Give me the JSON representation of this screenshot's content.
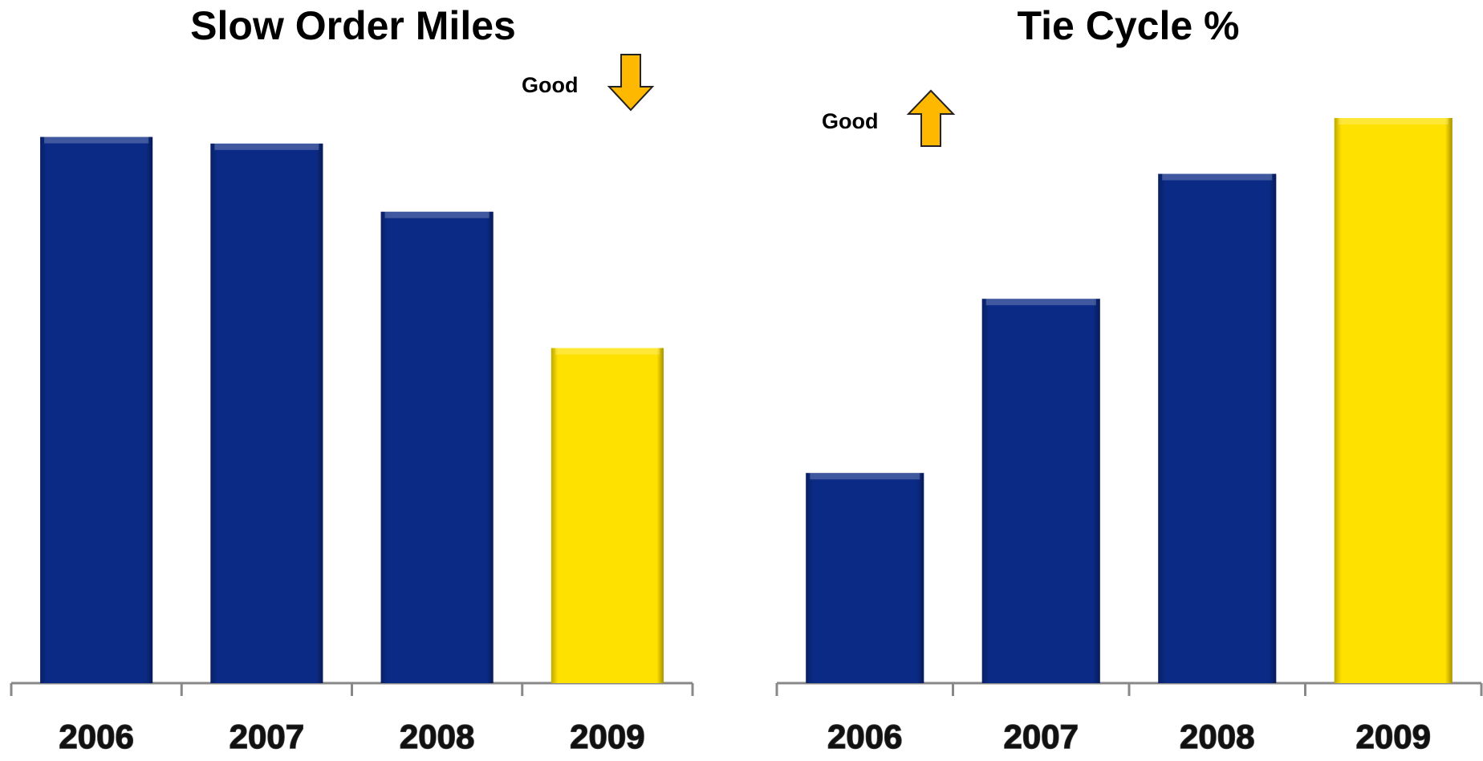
{
  "chart_data": [
    {
      "type": "bar",
      "title": "Slow Order Miles",
      "annotation": "Good",
      "categories": [
        "2006",
        "2007",
        "2008",
        "2009"
      ],
      "values": [
        577,
        570,
        498,
        354
      ],
      "colors": [
        "#0b2a85",
        "#0b2a85",
        "#0b2a85",
        "#ffe100"
      ]
    },
    {
      "type": "bar",
      "title": "Tie Cycle %",
      "annotation": "Good",
      "categories": [
        "2006",
        "2007",
        "2008",
        "2009"
      ],
      "values": [
        222,
        406,
        538,
        597
      ],
      "colors": [
        "#0b2a85",
        "#0b2a85",
        "#0b2a85",
        "#ffe100"
      ]
    }
  ]
}
